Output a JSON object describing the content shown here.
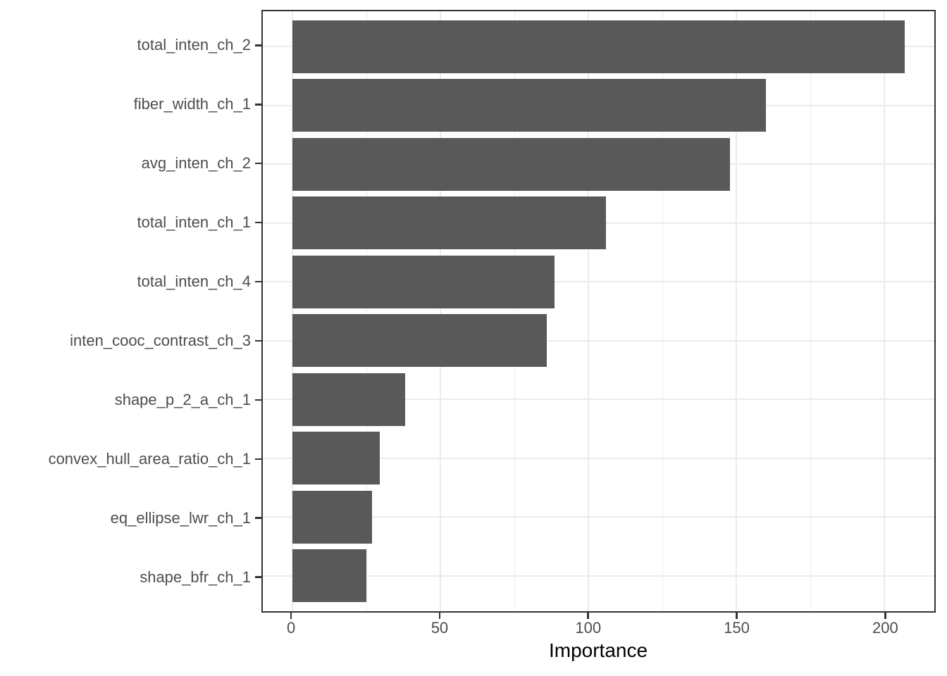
{
  "chart_data": {
    "type": "bar",
    "orientation": "horizontal",
    "title": "",
    "xlabel": "Importance",
    "ylabel": "",
    "categories": [
      "total_inten_ch_2",
      "fiber_width_ch_1",
      "avg_inten_ch_2",
      "total_inten_ch_1",
      "total_inten_ch_4",
      "inten_cooc_contrast_ch_3",
      "shape_p_2_a_ch_1",
      "convex_hull_area_ratio_ch_1",
      "eq_ellipse_lwr_ch_1",
      "shape_bfr_ch_1"
    ],
    "values": [
      207,
      160,
      148,
      106,
      88.5,
      86,
      38,
      29.5,
      27,
      25
    ],
    "xlim": [
      -10,
      217
    ],
    "x_major_ticks": [
      0,
      50,
      100,
      150,
      200
    ],
    "x_tick_labels": [
      "0",
      "50",
      "100",
      "150",
      "200"
    ],
    "x_minor_gridlines": [
      25,
      75,
      125,
      175
    ],
    "grid": true,
    "legend_position": "none",
    "colors": {
      "bar": "#595959",
      "grid_major": "#ebebeb",
      "grid_minor": "#efefef",
      "panel_border": "#333333",
      "axis_text": "#4d4d4d",
      "axis_title": "#000000",
      "background": "#ffffff"
    }
  }
}
